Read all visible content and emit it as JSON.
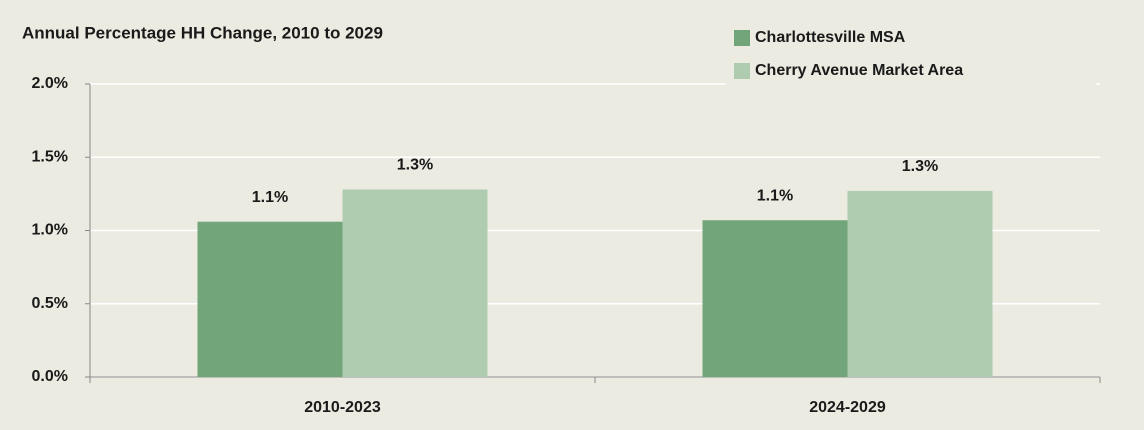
{
  "chart_data": {
    "type": "bar",
    "title": "Annual Percentage HH Change, 2010 to 2029",
    "categories": [
      "2010-2023",
      "2024-2029"
    ],
    "series": [
      {
        "name": "Charlottesville MSA",
        "color": "#72a57a",
        "values": [
          1.06,
          1.07
        ],
        "value_labels": [
          "1.1%",
          "1.1%"
        ]
      },
      {
        "name": "Cherry Avenue Market Area",
        "color": "#afcbb0",
        "values": [
          1.28,
          1.27
        ],
        "value_labels": [
          "1.3%",
          "1.3%"
        ]
      }
    ],
    "ylim": [
      0,
      2
    ],
    "yticks": [
      {
        "value": 0,
        "label": "0.0%"
      },
      {
        "value": 0.5,
        "label": "0.5%"
      },
      {
        "value": 1,
        "label": "1.0%"
      },
      {
        "value": 1.5,
        "label": "1.5%"
      },
      {
        "value": 2,
        "label": "2.0%"
      }
    ],
    "grid": true,
    "legend": "top-right"
  }
}
